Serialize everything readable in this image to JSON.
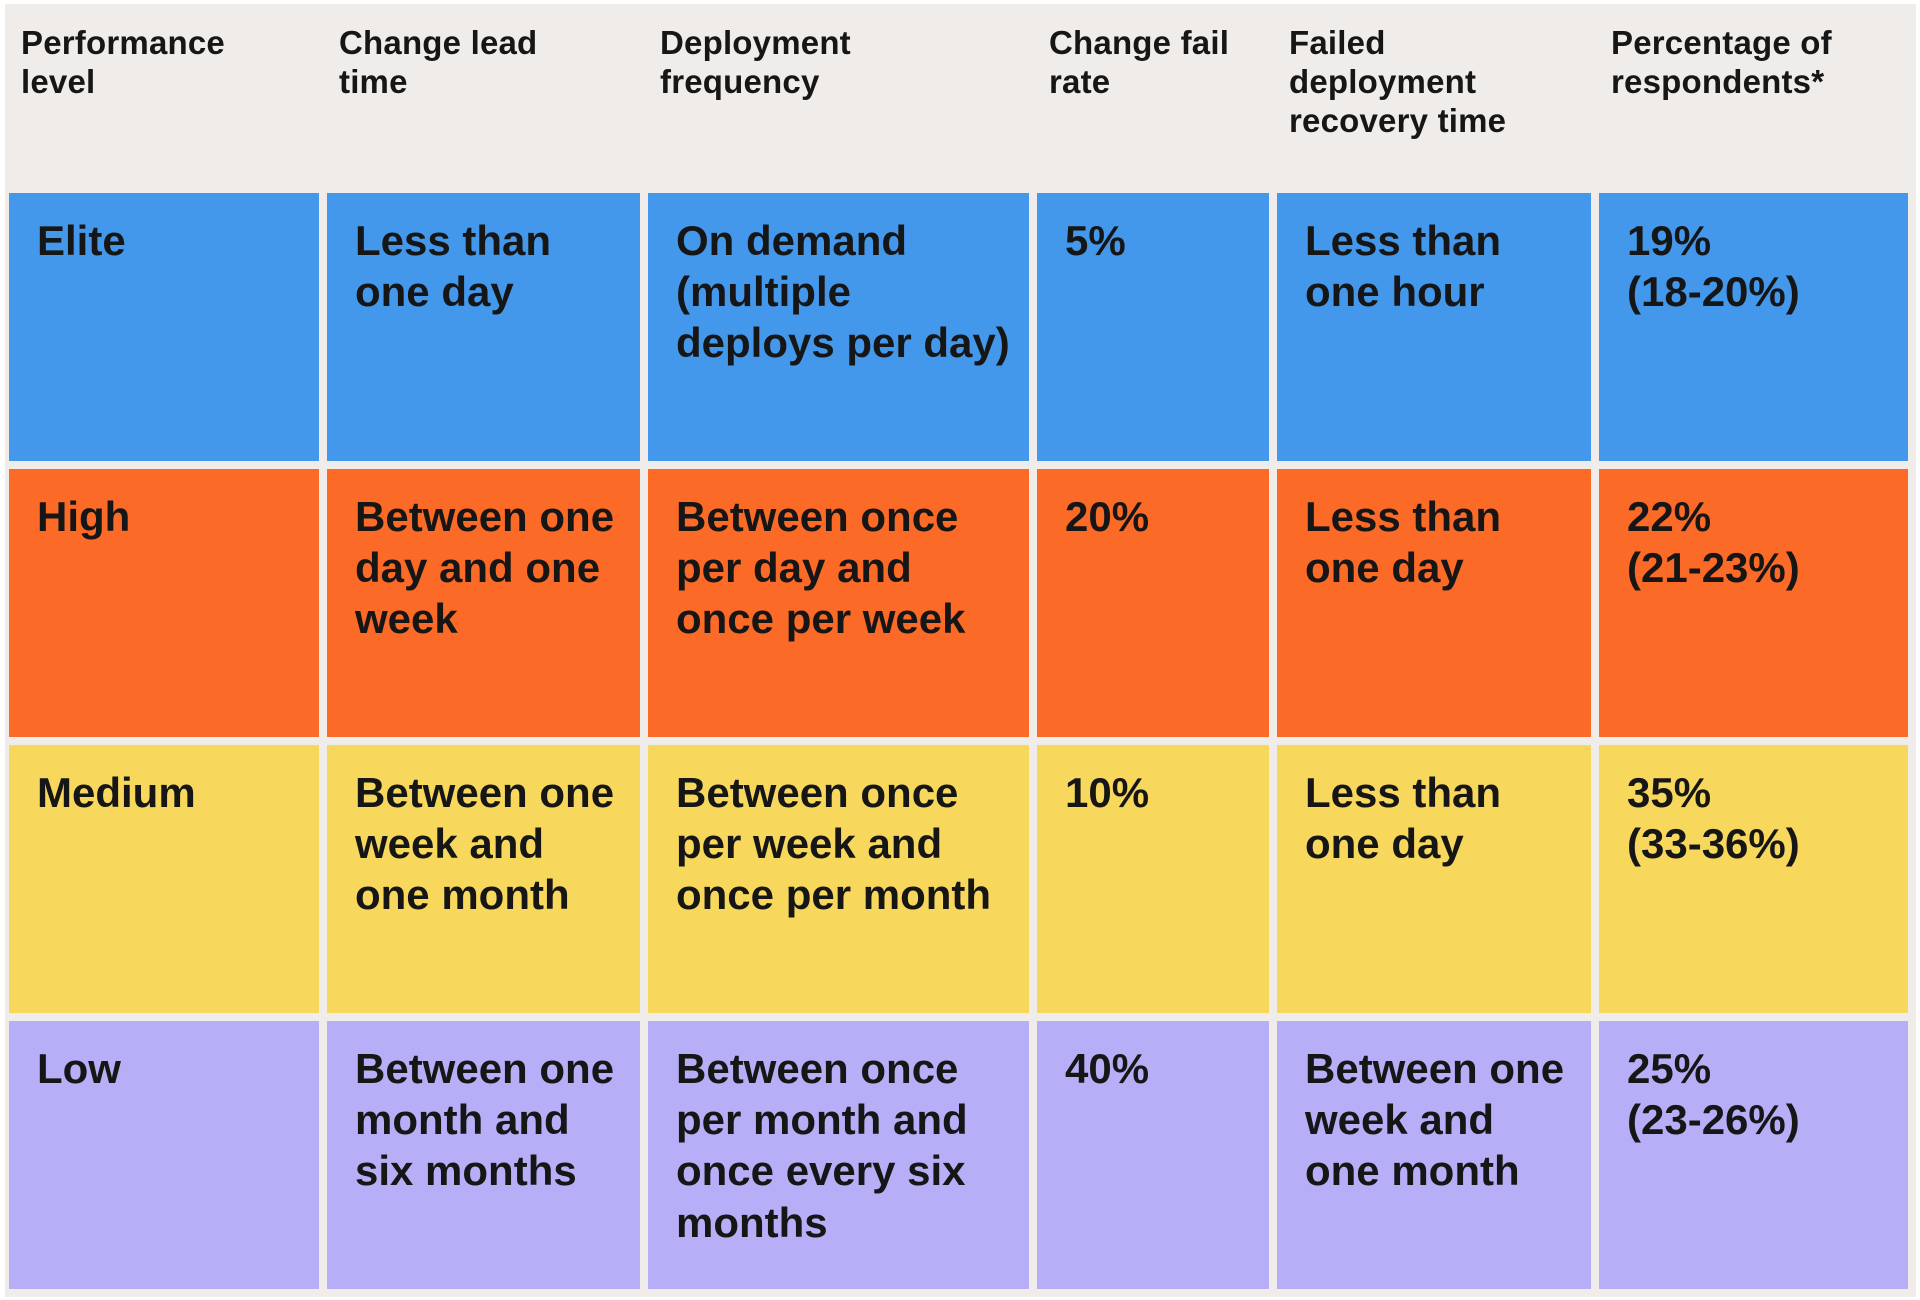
{
  "table": {
    "headers": [
      "Performance\nlevel",
      "Change lead\ntime",
      "Deployment\nfrequency",
      "Change fail\nrate",
      "Failed\ndeployment\nrecovery time",
      "Percentage of\nrespondents*"
    ],
    "rows": [
      {
        "name": "elite",
        "color": "#4398EC",
        "cells": [
          "Elite",
          "Less than\none day",
          "On demand\n(multiple\ndeploys per day)",
          "5%",
          "Less than\none hour",
          "19%\n(18-20%)"
        ]
      },
      {
        "name": "high",
        "color": "#FB6A26",
        "cells": [
          "High",
          "Between one\nday and one\nweek",
          "Between once\nper day and\nonce per week",
          "20%",
          "Less than\none day",
          "22%\n(21-23%)"
        ]
      },
      {
        "name": "medium",
        "color": "#F7D85C",
        "cells": [
          "Medium",
          "Between one\nweek and\none month",
          "Between once\nper week and\nonce per month",
          "10%",
          "Less than\none day",
          "35%\n(33-36%)"
        ]
      },
      {
        "name": "low",
        "color": "#B6AFF7",
        "cells": [
          "Low",
          "Between one\nmonth and\nsix months",
          "Between once\nper month and\nonce every six\nmonths",
          "40%",
          "Between one\nweek and\none month",
          "25%\n(23-26%)"
        ]
      }
    ]
  },
  "colors": {
    "background": "#EFECEA",
    "page_frame": "#ffffff",
    "text": "#161616",
    "row_elite": "#4398EC",
    "row_high": "#FB6A26",
    "row_medium": "#F7D85C",
    "row_low": "#B6AFF7"
  },
  "chart_data": {
    "type": "table",
    "title": "",
    "columns": [
      "Performance level",
      "Change lead time",
      "Deployment frequency",
      "Change fail rate",
      "Failed deployment recovery time",
      "Percentage of respondents*"
    ],
    "rows": [
      [
        "Elite",
        "Less than one day",
        "On demand (multiple deploys per day)",
        "5%",
        "Less than one hour",
        "19% (18-20%)"
      ],
      [
        "High",
        "Between one day and one week",
        "Between once per day and once per week",
        "20%",
        "Less than one day",
        "22% (21-23%)"
      ],
      [
        "Medium",
        "Between one week and one month",
        "Between once per week and once per month",
        "10%",
        "Less than one day",
        "35% (33-36%)"
      ],
      [
        "Low",
        "Between one month and six months",
        "Between once per month and once every six months",
        "40%",
        "Between one week and one month",
        "25% (23-26%)"
      ]
    ],
    "row_colors": [
      "#4398EC",
      "#FB6A26",
      "#F7D85C",
      "#B6AFF7"
    ],
    "legend_position": "none",
    "grid": false
  }
}
